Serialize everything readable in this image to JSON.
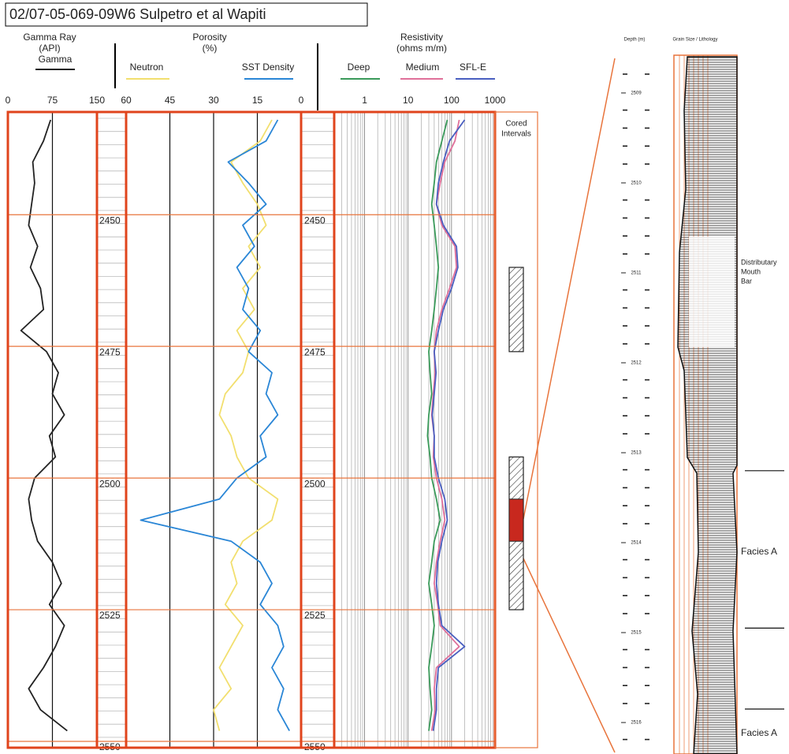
{
  "title": "02/07-05-069-09W6 Sulpetro et al Wapiti",
  "chart_data": [
    {
      "type": "well-log",
      "x": [
        2432,
        2436,
        2440,
        2444,
        2448,
        2452,
        2456,
        2460,
        2464,
        2468,
        2472,
        2476,
        2480,
        2484,
        2488,
        2492,
        2496,
        2500,
        2504,
        2508,
        2512,
        2516,
        2520,
        2524,
        2528,
        2532,
        2536,
        2540,
        2544,
        2548
      ],
      "xlim": [
        2430.5,
        2551.2
      ],
      "xticks": [
        2450,
        2475,
        2500,
        2525,
        2550
      ],
      "tracks": [
        {
          "title": [
            "Gamma Ray",
            "(API)"
          ],
          "ylim": [
            0,
            150
          ],
          "yticks": [
            0,
            75,
            150
          ],
          "grid": true,
          "series": [
            {
              "name": "Gamma",
              "color": "#222222",
              "values": [
                72,
                60,
                42,
                45,
                40,
                35,
                50,
                38,
                55,
                60,
                22,
                65,
                85,
                75,
                95,
                70,
                80,
                45,
                35,
                40,
                50,
                75,
                90,
                70,
                95,
                80,
                60,
                35,
                55,
                100
              ]
            }
          ]
        },
        {
          "title": [
            "Porosity",
            "(%)"
          ],
          "ylim": [
            60,
            0
          ],
          "yticks": [
            60,
            45,
            30,
            15,
            0
          ],
          "grid": true,
          "series": [
            {
              "name": "Neutron",
              "color": "#f2df6e",
              "values": [
                10,
                14,
                24,
                20,
                15,
                12,
                18,
                14,
                20,
                16,
                22,
                18,
                20,
                26,
                28,
                24,
                22,
                18,
                8,
                10,
                20,
                24,
                22,
                26,
                20,
                24,
                28,
                24,
                30,
                28
              ]
            },
            {
              "name": "SST Density",
              "color": "#2a86d6",
              "values": [
                8,
                12,
                25,
                18,
                12,
                20,
                16,
                22,
                18,
                20,
                14,
                18,
                10,
                12,
                8,
                14,
                12,
                22,
                28,
                55,
                24,
                14,
                10,
                14,
                8,
                6,
                10,
                6,
                8,
                4
              ]
            }
          ]
        },
        {
          "title": [
            "Resistivity",
            "(ohms m/m)"
          ],
          "ylim": [
            0.2,
            1000
          ],
          "yticks": [
            1,
            10,
            100,
            1000
          ],
          "log": true,
          "grid": true,
          "series": [
            {
              "name": "Deep",
              "color": "#3a9a5a",
              "values": [
                80,
                60,
                45,
                40,
                35,
                40,
                45,
                50,
                45,
                40,
                35,
                30,
                32,
                35,
                30,
                28,
                32,
                35,
                45,
                55,
                40,
                35,
                30,
                35,
                40,
                35,
                30,
                32,
                35,
                30
              ]
            },
            {
              "name": "Medium",
              "color": "#e0709a",
              "values": [
                150,
                120,
                70,
                55,
                45,
                60,
                120,
                130,
                90,
                60,
                45,
                40,
                42,
                38,
                35,
                40,
                38,
                45,
                60,
                70,
                55,
                45,
                40,
                48,
                55,
                150,
                45,
                40,
                42,
                35
              ]
            },
            {
              "name": "SFL-E",
              "color": "#4a5fc0",
              "values": [
                200,
                90,
                65,
                50,
                45,
                65,
                130,
                140,
                100,
                65,
                50,
                40,
                44,
                40,
                36,
                40,
                40,
                50,
                70,
                80,
                60,
                48,
                45,
                50,
                60,
                200,
                50,
                45,
                45,
                38
              ]
            }
          ]
        }
      ],
      "cored_intervals": {
        "title": [
          "Cored",
          "Intervals"
        ],
        "intervals": [
          [
            2460,
            2476
          ],
          [
            2496,
            2525
          ]
        ],
        "highlight": [
          2504,
          2512
        ]
      }
    },
    {
      "type": "core-description",
      "header": [
        "Depth (m)",
        "Grain Size / Lithology"
      ],
      "ylim": [
        2508.58,
        2516.35
      ],
      "yticks": [
        2509,
        2510,
        2511,
        2512,
        2513,
        2514,
        2515,
        2516
      ],
      "boundaries": [
        2513.2,
        2514.95,
        2515.85
      ],
      "annotations": [
        [
          "Distributary",
          "Mouth",
          "Bar"
        ],
        [
          "Facies A"
        ],
        [
          "Facies A"
        ]
      ]
    }
  ]
}
